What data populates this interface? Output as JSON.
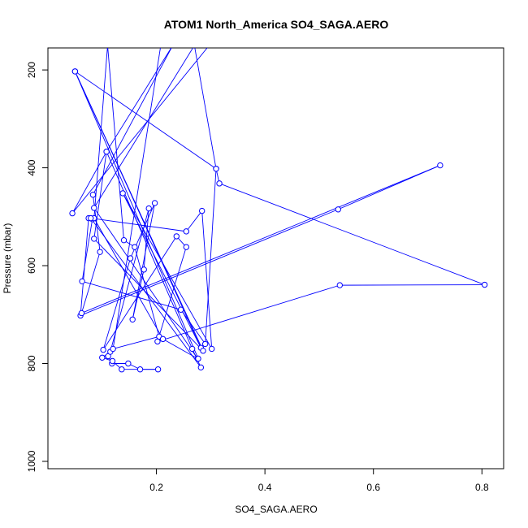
{
  "chart_data": {
    "type": "line",
    "title": "ATOM1 North_America SO4_SAGA.AERO",
    "xlabel": "SO4_SAGA.AERO",
    "ylabel": "Pressure (mbar)",
    "xlim": [
      0.0,
      0.84
    ],
    "ylim": [
      1015,
      155
    ],
    "y_reversed": true,
    "x_ticks": [
      0.2,
      0.4,
      0.6,
      0.8
    ],
    "x_tick_labels": [
      "0.2",
      "0.4",
      "0.6",
      "0.8"
    ],
    "y_ticks": [
      200,
      400,
      600,
      800,
      1000
    ],
    "y_tick_labels": [
      "200",
      "400",
      "600",
      "800",
      "1000"
    ],
    "grid": false,
    "series": [
      {
        "color": "#0000ff",
        "points": [
          [
            0.111,
            785
          ],
          [
            0.118,
            800
          ],
          [
            0.148,
            800
          ],
          [
            0.17,
            812
          ],
          [
            0.203,
            812
          ],
          [
            0.136,
            812
          ],
          [
            0.119,
            795
          ],
          [
            0.1,
            788
          ],
          [
            0.115,
            776
          ],
          [
            0.186,
            483
          ],
          [
            0.177,
            608
          ],
          [
            0.156,
            710
          ],
          [
            0.197,
            472
          ],
          [
            0.152,
            585
          ],
          [
            0.102,
            772
          ],
          [
            0.237,
            540
          ],
          [
            0.255,
            562
          ],
          [
            0.202,
            755
          ],
          [
            0.538,
            640
          ],
          [
            0.805,
            639
          ],
          [
            0.316,
            432
          ],
          [
            0.31,
            402
          ],
          [
            0.29,
            760
          ],
          [
            0.245,
            690
          ],
          [
            0.063,
            632
          ],
          [
            0.082,
            505
          ],
          [
            0.075,
            503
          ],
          [
            0.06,
            702
          ],
          [
            0.535,
            485
          ],
          [
            0.723,
            395
          ],
          [
            0.062,
            697
          ],
          [
            0.096,
            572
          ],
          [
            0.083,
            455
          ],
          [
            0.23,
            150
          ],
          [
            0.108,
            367
          ],
          [
            0.045,
            493
          ],
          [
            0.295,
            153
          ],
          [
            0.208,
            150
          ],
          [
            0.12,
            770
          ],
          [
            0.205,
            745
          ],
          [
            0.16,
            562
          ],
          [
            0.14,
            548
          ],
          [
            0.11,
            150
          ],
          [
            0.085,
            503
          ],
          [
            0.212,
            750
          ],
          [
            0.276,
            790
          ],
          [
            0.085,
            482
          ],
          [
            0.27,
            150
          ],
          [
            0.31,
            402
          ],
          [
            0.05,
            203
          ],
          [
            0.282,
            768
          ],
          [
            0.138,
            452
          ],
          [
            0.302,
            770
          ],
          [
            0.284,
            488
          ],
          [
            0.255,
            530
          ],
          [
            0.079,
            503
          ],
          [
            0.282,
            808
          ],
          [
            0.266,
            770
          ],
          [
            0.108,
            367
          ],
          [
            0.085,
            545
          ],
          [
            0.286,
            774
          ],
          [
            0.05,
            203
          ],
          [
            0.277,
            790
          ]
        ]
      }
    ]
  }
}
